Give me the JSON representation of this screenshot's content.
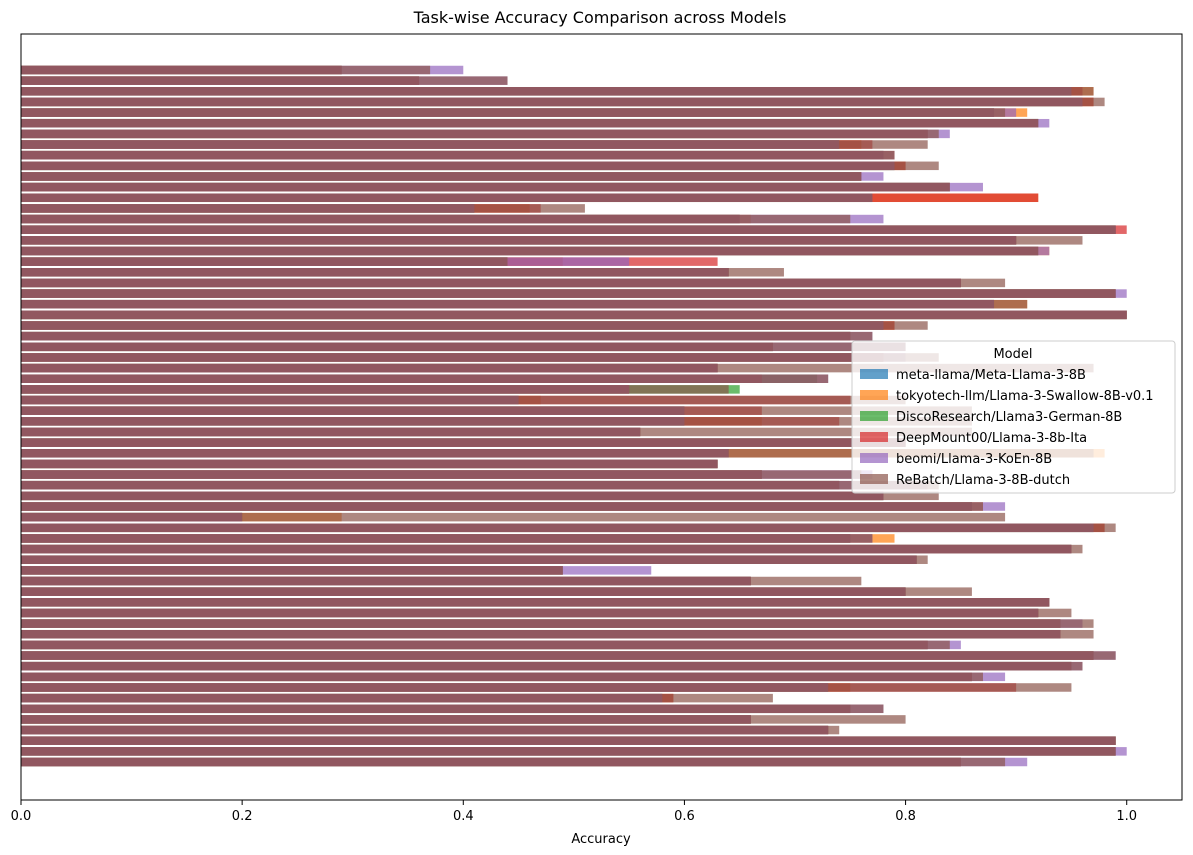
{
  "chart_data": {
    "type": "bar",
    "orientation": "horizontal",
    "title": "Task-wise Accuracy Comparison across Models",
    "xlabel": "Accuracy",
    "ylabel": "",
    "xlim": [
      0,
      1.05
    ],
    "xticks": [
      "0.0",
      "0.2",
      "0.4",
      "0.6",
      "0.8",
      "1.0"
    ],
    "grid": false,
    "legend": {
      "title": "Model",
      "placement": "center-right"
    },
    "alpha": 0.7,
    "series": [
      {
        "name": "meta-llama/Meta-Llama-3-8B",
        "color": "#1f77b4",
        "values": [
          0.29,
          0.36,
          0.95,
          0.96,
          0.88,
          0.92,
          0.82,
          0.74,
          0.78,
          0.79,
          0.76,
          0.84,
          0.77,
          0.41,
          0.65,
          0.99,
          0.9,
          0.92,
          0.44,
          0.64,
          0.85,
          0.99,
          0.88,
          1.0,
          0.78,
          0.75,
          0.68,
          0.78,
          0.63,
          0.67,
          0.55,
          0.45,
          0.6,
          0.6,
          0.56,
          0.8,
          0.64,
          0.63,
          0.67,
          0.74,
          0.78,
          0.86,
          0.2,
          0.97,
          0.75,
          0.95,
          0.81,
          0.49,
          0.66,
          0.8,
          0.93,
          0.92,
          0.94,
          0.94,
          0.82,
          0.97,
          0.95,
          0.86,
          0.73,
          0.58,
          0.75,
          0.66,
          0.73,
          0.99,
          0.99,
          0.85
        ]
      },
      {
        "name": "tokyotech-llm/Llama-3-Swallow-8B-v0.1",
        "color": "#ff7f0e",
        "values": [
          0.29,
          0.36,
          0.97,
          0.97,
          0.91,
          0.92,
          0.82,
          0.76,
          0.79,
          0.8,
          0.76,
          0.84,
          0.92,
          0.46,
          0.66,
          0.99,
          0.9,
          0.93,
          0.49,
          0.64,
          0.85,
          0.99,
          0.91,
          1.0,
          0.79,
          0.75,
          0.68,
          0.78,
          0.63,
          0.67,
          0.55,
          0.47,
          0.6,
          0.67,
          0.56,
          0.8,
          0.98,
          0.63,
          0.67,
          0.74,
          0.78,
          0.87,
          0.29,
          0.98,
          0.79,
          0.95,
          0.81,
          0.49,
          0.66,
          0.8,
          0.93,
          0.92,
          0.94,
          0.94,
          0.82,
          0.97,
          0.95,
          0.86,
          0.75,
          0.59,
          0.75,
          0.66,
          0.73,
          0.99,
          0.99,
          0.85
        ]
      },
      {
        "name": "DiscoResearch/Llama3-German-8B",
        "color": "#2ca02c",
        "values": [
          0.29,
          0.36,
          0.95,
          0.96,
          0.88,
          0.92,
          0.82,
          0.74,
          0.78,
          0.79,
          0.76,
          0.84,
          0.77,
          0.41,
          0.65,
          0.99,
          0.9,
          0.92,
          0.44,
          0.64,
          0.85,
          0.99,
          0.88,
          1.0,
          0.78,
          0.75,
          0.68,
          0.78,
          0.63,
          0.72,
          0.65,
          0.45,
          0.6,
          0.6,
          0.56,
          0.8,
          0.64,
          0.63,
          0.67,
          0.74,
          0.78,
          0.86,
          0.2,
          0.97,
          0.75,
          0.95,
          0.81,
          0.49,
          0.66,
          0.8,
          0.93,
          0.92,
          0.94,
          0.94,
          0.82,
          0.97,
          0.95,
          0.86,
          0.73,
          0.58,
          0.75,
          0.66,
          0.73,
          0.99,
          0.99,
          0.85
        ]
      },
      {
        "name": "DeepMount00/Llama-3-8b-Ita",
        "color": "#d62728",
        "values": [
          0.29,
          0.36,
          0.96,
          0.97,
          0.88,
          0.92,
          0.82,
          0.77,
          0.78,
          0.8,
          0.76,
          0.84,
          0.92,
          0.47,
          0.65,
          1.0,
          0.9,
          0.92,
          0.63,
          0.64,
          0.85,
          0.99,
          0.88,
          1.0,
          0.79,
          0.75,
          0.68,
          0.78,
          0.63,
          0.67,
          0.55,
          0.75,
          0.67,
          0.74,
          0.56,
          0.8,
          0.64,
          0.63,
          0.67,
          0.74,
          0.78,
          0.86,
          0.2,
          0.98,
          0.75,
          0.95,
          0.81,
          0.49,
          0.66,
          0.8,
          0.93,
          0.92,
          0.94,
          0.94,
          0.82,
          0.97,
          0.95,
          0.86,
          0.9,
          0.59,
          0.75,
          0.66,
          0.73,
          0.99,
          0.99,
          0.85
        ]
      },
      {
        "name": "beomi/Llama-3-KoEn-8B",
        "color": "#9467bd",
        "values": [
          0.4,
          0.44,
          0.95,
          0.96,
          0.9,
          0.93,
          0.84,
          0.74,
          0.79,
          0.79,
          0.78,
          0.87,
          0.77,
          0.41,
          0.78,
          0.99,
          0.9,
          0.93,
          0.55,
          0.64,
          0.85,
          1.0,
          0.88,
          1.0,
          0.78,
          0.77,
          0.8,
          0.8,
          0.63,
          0.73,
          0.55,
          0.45,
          0.6,
          0.6,
          0.56,
          0.8,
          0.64,
          0.63,
          0.77,
          0.82,
          0.78,
          0.89,
          0.2,
          0.97,
          0.77,
          0.95,
          0.81,
          0.57,
          0.66,
          0.8,
          0.93,
          0.92,
          0.96,
          0.94,
          0.85,
          0.99,
          0.96,
          0.89,
          0.73,
          0.58,
          0.78,
          0.66,
          0.73,
          0.99,
          1.0,
          0.91
        ]
      },
      {
        "name": "ReBatch/Llama-3-8B-dutch",
        "color": "#8c564b",
        "values": [
          0.37,
          0.44,
          0.97,
          0.98,
          0.89,
          0.92,
          0.83,
          0.82,
          0.79,
          0.83,
          0.76,
          0.84,
          0.77,
          0.51,
          0.75,
          0.99,
          0.96,
          0.92,
          0.44,
          0.69,
          0.89,
          0.99,
          0.91,
          1.0,
          0.82,
          0.77,
          0.8,
          0.83,
          0.97,
          0.73,
          0.64,
          0.8,
          0.86,
          0.86,
          0.86,
          0.8,
          0.97,
          0.63,
          0.76,
          0.83,
          0.83,
          0.87,
          0.89,
          0.99,
          0.77,
          0.96,
          0.82,
          0.49,
          0.76,
          0.86,
          0.93,
          0.95,
          0.97,
          0.97,
          0.84,
          0.99,
          0.96,
          0.87,
          0.95,
          0.68,
          0.78,
          0.8,
          0.74,
          0.99,
          0.99,
          0.89
        ]
      }
    ]
  }
}
